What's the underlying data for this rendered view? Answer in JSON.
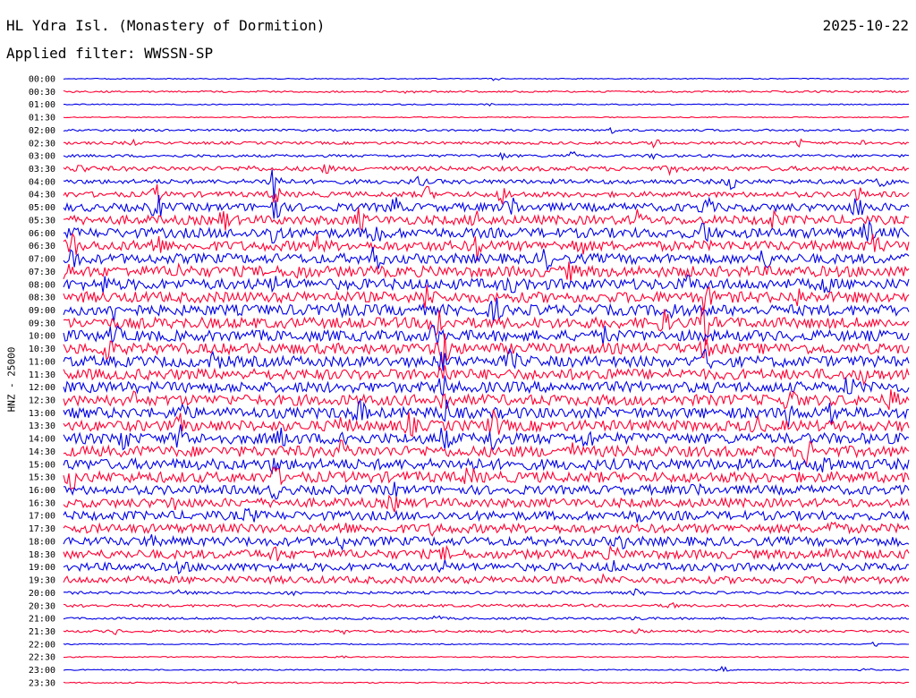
{
  "header": {
    "station": "HL Ydra Isl. (Monastery of Dormition)",
    "date": "2025-10-22",
    "filter": "Applied filter: WWSSN-SP"
  },
  "axis_label": "HNZ - 25000",
  "colors": {
    "odd": "#0000e6",
    "even": "#ff0033"
  },
  "chart_data": {
    "type": "line",
    "title": "HL Ydra Isl. (Monastery of Dormition)",
    "ylabel": "HNZ - 25000",
    "rows": [
      {
        "label": "00:00",
        "amp": 0.5,
        "events": [
          [
            0.51,
            2
          ]
        ]
      },
      {
        "label": "00:30",
        "amp": 1,
        "events": [
          [
            0.41,
            3
          ]
        ]
      },
      {
        "label": "01:00",
        "amp": 0.6,
        "events": [
          [
            0.5,
            2
          ]
        ]
      },
      {
        "label": "01:30",
        "amp": 0.5,
        "events": []
      },
      {
        "label": "02:00",
        "amp": 1.2,
        "events": [
          [
            0.65,
            3
          ]
        ]
      },
      {
        "label": "02:30",
        "amp": 1.5,
        "events": [
          [
            0.08,
            3
          ],
          [
            0.7,
            4
          ],
          [
            0.87,
            4
          ],
          [
            0.95,
            4
          ]
        ]
      },
      {
        "label": "03:00",
        "amp": 1.5,
        "events": [
          [
            0.6,
            5
          ],
          [
            0.52,
            3
          ],
          [
            0.7,
            3
          ]
        ]
      },
      {
        "label": "03:30",
        "amp": 2.5,
        "events": [
          [
            0.02,
            5
          ],
          [
            0.22,
            3
          ],
          [
            0.31,
            4
          ],
          [
            0.72,
            5
          ]
        ]
      },
      {
        "label": "04:00",
        "amp": 2.5,
        "events": [
          [
            0.25,
            30
          ],
          [
            0.42,
            5
          ],
          [
            0.79,
            7
          ],
          [
            0.97,
            6
          ]
        ]
      },
      {
        "label": "04:30",
        "amp": 3,
        "events": [
          [
            0.11,
            9
          ],
          [
            0.25,
            10
          ],
          [
            0.43,
            7
          ],
          [
            0.52,
            9
          ],
          [
            0.94,
            6
          ]
        ]
      },
      {
        "label": "05:00",
        "amp": 4.5,
        "events": [
          [
            0.11,
            13
          ],
          [
            0.25,
            16
          ],
          [
            0.39,
            10
          ],
          [
            0.53,
            14
          ],
          [
            0.76,
            10
          ],
          [
            0.94,
            12
          ]
        ]
      },
      {
        "label": "05:30",
        "amp": 5,
        "events": [
          [
            0.19,
            9
          ],
          [
            0.35,
            10
          ],
          [
            0.49,
            11
          ],
          [
            0.68,
            8
          ],
          [
            0.84,
            9
          ]
        ]
      },
      {
        "label": "06:00",
        "amp": 5.5,
        "events": [
          [
            0.25,
            14
          ],
          [
            0.37,
            13
          ],
          [
            0.76,
            12
          ],
          [
            0.95,
            11
          ]
        ]
      },
      {
        "label": "06:30",
        "amp": 5.5,
        "events": [
          [
            0.01,
            12
          ],
          [
            0.11,
            12
          ],
          [
            0.3,
            9
          ],
          [
            0.49,
            13
          ],
          [
            0.61,
            9
          ],
          [
            0.96,
            11
          ]
        ]
      },
      {
        "label": "07:00",
        "amp": 5.5,
        "events": [
          [
            0.01,
            14
          ],
          [
            0.37,
            12
          ],
          [
            0.57,
            10
          ],
          [
            0.83,
            8
          ]
        ]
      },
      {
        "label": "07:30",
        "amp": 6,
        "events": [
          [
            0.0,
            12
          ],
          [
            0.14,
            8
          ],
          [
            0.28,
            7
          ],
          [
            0.6,
            7
          ]
        ]
      },
      {
        "label": "08:00",
        "amp": 6,
        "events": [
          [
            0.05,
            7
          ],
          [
            0.25,
            6
          ],
          [
            0.53,
            7
          ],
          [
            0.74,
            6
          ],
          [
            0.9,
            7
          ]
        ]
      },
      {
        "label": "08:30",
        "amp": 6,
        "events": [
          [
            0.43,
            14
          ],
          [
            0.76,
            14
          ],
          [
            0.87,
            8
          ]
        ]
      },
      {
        "label": "09:00",
        "amp": 6,
        "events": [
          [
            0.06,
            9
          ],
          [
            0.33,
            8
          ],
          [
            0.51,
            11
          ],
          [
            0.72,
            7
          ]
        ]
      },
      {
        "label": "09:30",
        "amp": 6,
        "events": [
          [
            0.44,
            28
          ],
          [
            0.71,
            10
          ],
          [
            0.76,
            20
          ]
        ]
      },
      {
        "label": "10:00",
        "amp": 6,
        "events": [
          [
            0.06,
            8
          ],
          [
            0.44,
            12
          ],
          [
            0.64,
            7
          ]
        ]
      },
      {
        "label": "10:30",
        "amp": 6,
        "events": [
          [
            0.05,
            12
          ],
          [
            0.45,
            22
          ],
          [
            0.76,
            8
          ]
        ]
      },
      {
        "label": "11:00",
        "amp": 6,
        "events": [
          [
            0.18,
            8
          ],
          [
            0.45,
            10
          ],
          [
            0.53,
            10
          ],
          [
            0.76,
            8
          ]
        ]
      },
      {
        "label": "11:30",
        "amp": 6,
        "events": [
          [
            0.45,
            12
          ],
          [
            0.64,
            10
          ],
          [
            0.95,
            8
          ]
        ]
      },
      {
        "label": "12:00",
        "amp": 6,
        "events": [
          [
            0.45,
            12
          ],
          [
            0.93,
            9
          ]
        ]
      },
      {
        "label": "12:30",
        "amp": 6,
        "events": [
          [
            0.08,
            7
          ],
          [
            0.45,
            12
          ],
          [
            0.86,
            14
          ],
          [
            0.98,
            8
          ]
        ]
      },
      {
        "label": "13:00",
        "amp": 6,
        "events": [
          [
            0.14,
            10
          ],
          [
            0.35,
            12
          ],
          [
            0.45,
            14
          ],
          [
            0.86,
            12
          ],
          [
            0.91,
            16
          ]
        ]
      },
      {
        "label": "13:30",
        "amp": 6,
        "events": [
          [
            0.14,
            10
          ],
          [
            0.33,
            12
          ],
          [
            0.41,
            10
          ],
          [
            0.51,
            14
          ],
          [
            0.82,
            7
          ]
        ]
      },
      {
        "label": "14:00",
        "amp": 6,
        "events": [
          [
            0.07,
            12
          ],
          [
            0.14,
            14
          ],
          [
            0.26,
            10
          ],
          [
            0.33,
            12
          ],
          [
            0.45,
            10
          ],
          [
            0.51,
            12
          ],
          [
            0.62,
            8
          ]
        ]
      },
      {
        "label": "14:30",
        "amp": 6,
        "events": [
          [
            0.33,
            8
          ],
          [
            0.6,
            6
          ],
          [
            0.88,
            12
          ]
        ]
      },
      {
        "label": "15:00",
        "amp": 6,
        "events": [
          [
            0.25,
            6
          ],
          [
            0.48,
            8
          ],
          [
            0.9,
            16
          ]
        ]
      },
      {
        "label": "15:30",
        "amp": 6,
        "events": [
          [
            0.01,
            10
          ],
          [
            0.25,
            8
          ],
          [
            0.48,
            8
          ]
        ]
      },
      {
        "label": "16:00",
        "amp": 5,
        "events": [
          [
            0.25,
            6
          ],
          [
            0.39,
            5
          ],
          [
            0.75,
            7
          ]
        ]
      },
      {
        "label": "16:30",
        "amp": 5,
        "events": [
          [
            0.13,
            6
          ],
          [
            0.39,
            6
          ]
        ]
      },
      {
        "label": "17:00",
        "amp": 5,
        "events": [
          [
            0.22,
            7
          ],
          [
            0.68,
            5
          ]
        ]
      },
      {
        "label": "17:30",
        "amp": 5,
        "events": [
          [
            0.33,
            6
          ],
          [
            0.44,
            6
          ],
          [
            0.91,
            6
          ]
        ]
      },
      {
        "label": "18:00",
        "amp": 5,
        "events": [
          [
            0.1,
            5
          ],
          [
            0.33,
            5
          ],
          [
            0.66,
            5
          ]
        ]
      },
      {
        "label": "18:30",
        "amp": 5,
        "events": [
          [
            0.25,
            5
          ],
          [
            0.45,
            5
          ],
          [
            0.65,
            5
          ],
          [
            0.91,
            7
          ]
        ]
      },
      {
        "label": "19:00",
        "amp": 4.5,
        "events": [
          [
            0.14,
            5
          ],
          [
            0.45,
            4
          ],
          [
            0.65,
            4
          ]
        ]
      },
      {
        "label": "19:30",
        "amp": 4,
        "events": [
          [
            0.64,
            3
          ]
        ]
      },
      {
        "label": "20:00",
        "amp": 1.5,
        "events": [
          [
            0.14,
            3
          ],
          [
            0.27,
            4
          ],
          [
            0.68,
            4
          ]
        ]
      },
      {
        "label": "20:30",
        "amp": 1.5,
        "events": [
          [
            0.02,
            2
          ],
          [
            0.25,
            2
          ],
          [
            0.72,
            3
          ]
        ]
      },
      {
        "label": "21:00",
        "amp": 1.2,
        "events": [
          [
            0.44,
            3
          ],
          [
            0.68,
            3
          ]
        ]
      },
      {
        "label": "21:30",
        "amp": 1.3,
        "events": [
          [
            0.06,
            3
          ],
          [
            0.33,
            2
          ],
          [
            0.68,
            3
          ]
        ]
      },
      {
        "label": "22:00",
        "amp": 0.6,
        "events": [
          [
            0.96,
            3
          ]
        ]
      },
      {
        "label": "22:30",
        "amp": 0.6,
        "events": [
          [
            0.33,
            2
          ]
        ]
      },
      {
        "label": "23:00",
        "amp": 0.6,
        "events": [
          [
            0.78,
            3
          ],
          [
            0.95,
            2
          ]
        ]
      },
      {
        "label": "23:30",
        "amp": 0.7,
        "events": [
          [
            0.2,
            2
          ]
        ]
      }
    ]
  }
}
